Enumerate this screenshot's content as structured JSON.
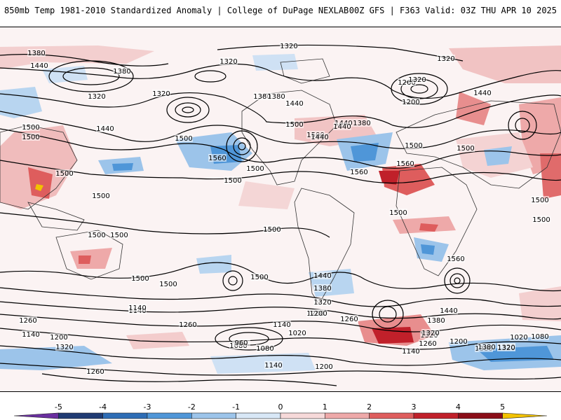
{
  "header": {
    "title_left": "850mb Temp 1981-2010 Standardized Anomaly | College of DuPage NEXLAB",
    "title_right": "00Z GFS | F363 Valid: 03Z THU APR 10 2025"
  },
  "colorbar": {
    "tick_labels": [
      "-5",
      "-4",
      "-3",
      "-2",
      "-1",
      "0",
      "1",
      "2",
      "3",
      "4",
      "5"
    ],
    "colors": [
      "#6a2fa0",
      "#1f3b73",
      "#2e6db5",
      "#4f96d8",
      "#9cc4ea",
      "#d8e7f6",
      "#f6d9d9",
      "#eea9a9",
      "#de5d5d",
      "#c0202a",
      "#8a0d18",
      "#f2c200"
    ]
  },
  "contour_labels": [
    "1380",
    "1320",
    "1320",
    "1440",
    "1380",
    "1320",
    "1260",
    "1320",
    "1200",
    "1320",
    "1380",
    "1440",
    "1320",
    "1380",
    "1440",
    "1500",
    "1440",
    "1500",
    "1440",
    "1500",
    "1440",
    "1500",
    "1380",
    "1500",
    "1560",
    "1500",
    "1560",
    "1500",
    "1560",
    "1500",
    "1500",
    "1500",
    "1500",
    "1440",
    "1500",
    "1500",
    "1500",
    "1500",
    "1500",
    "1500",
    "1500",
    "1500",
    "1500",
    "1560",
    "1440",
    "1380",
    "1320",
    "1200",
    "1140",
    "1260",
    "1440",
    "1380",
    "1320",
    "1200",
    "1260",
    "1140",
    "1080",
    "1020",
    "960",
    "1080",
    "1140",
    "1320",
    "1260",
    "1380",
    "1320",
    "1200",
    "1140",
    "1260",
    "1140",
    "1200",
    "1020",
    "1080",
    "1320",
    "1380",
    "1320",
    "1140",
    "1200",
    "1260"
  ]
}
